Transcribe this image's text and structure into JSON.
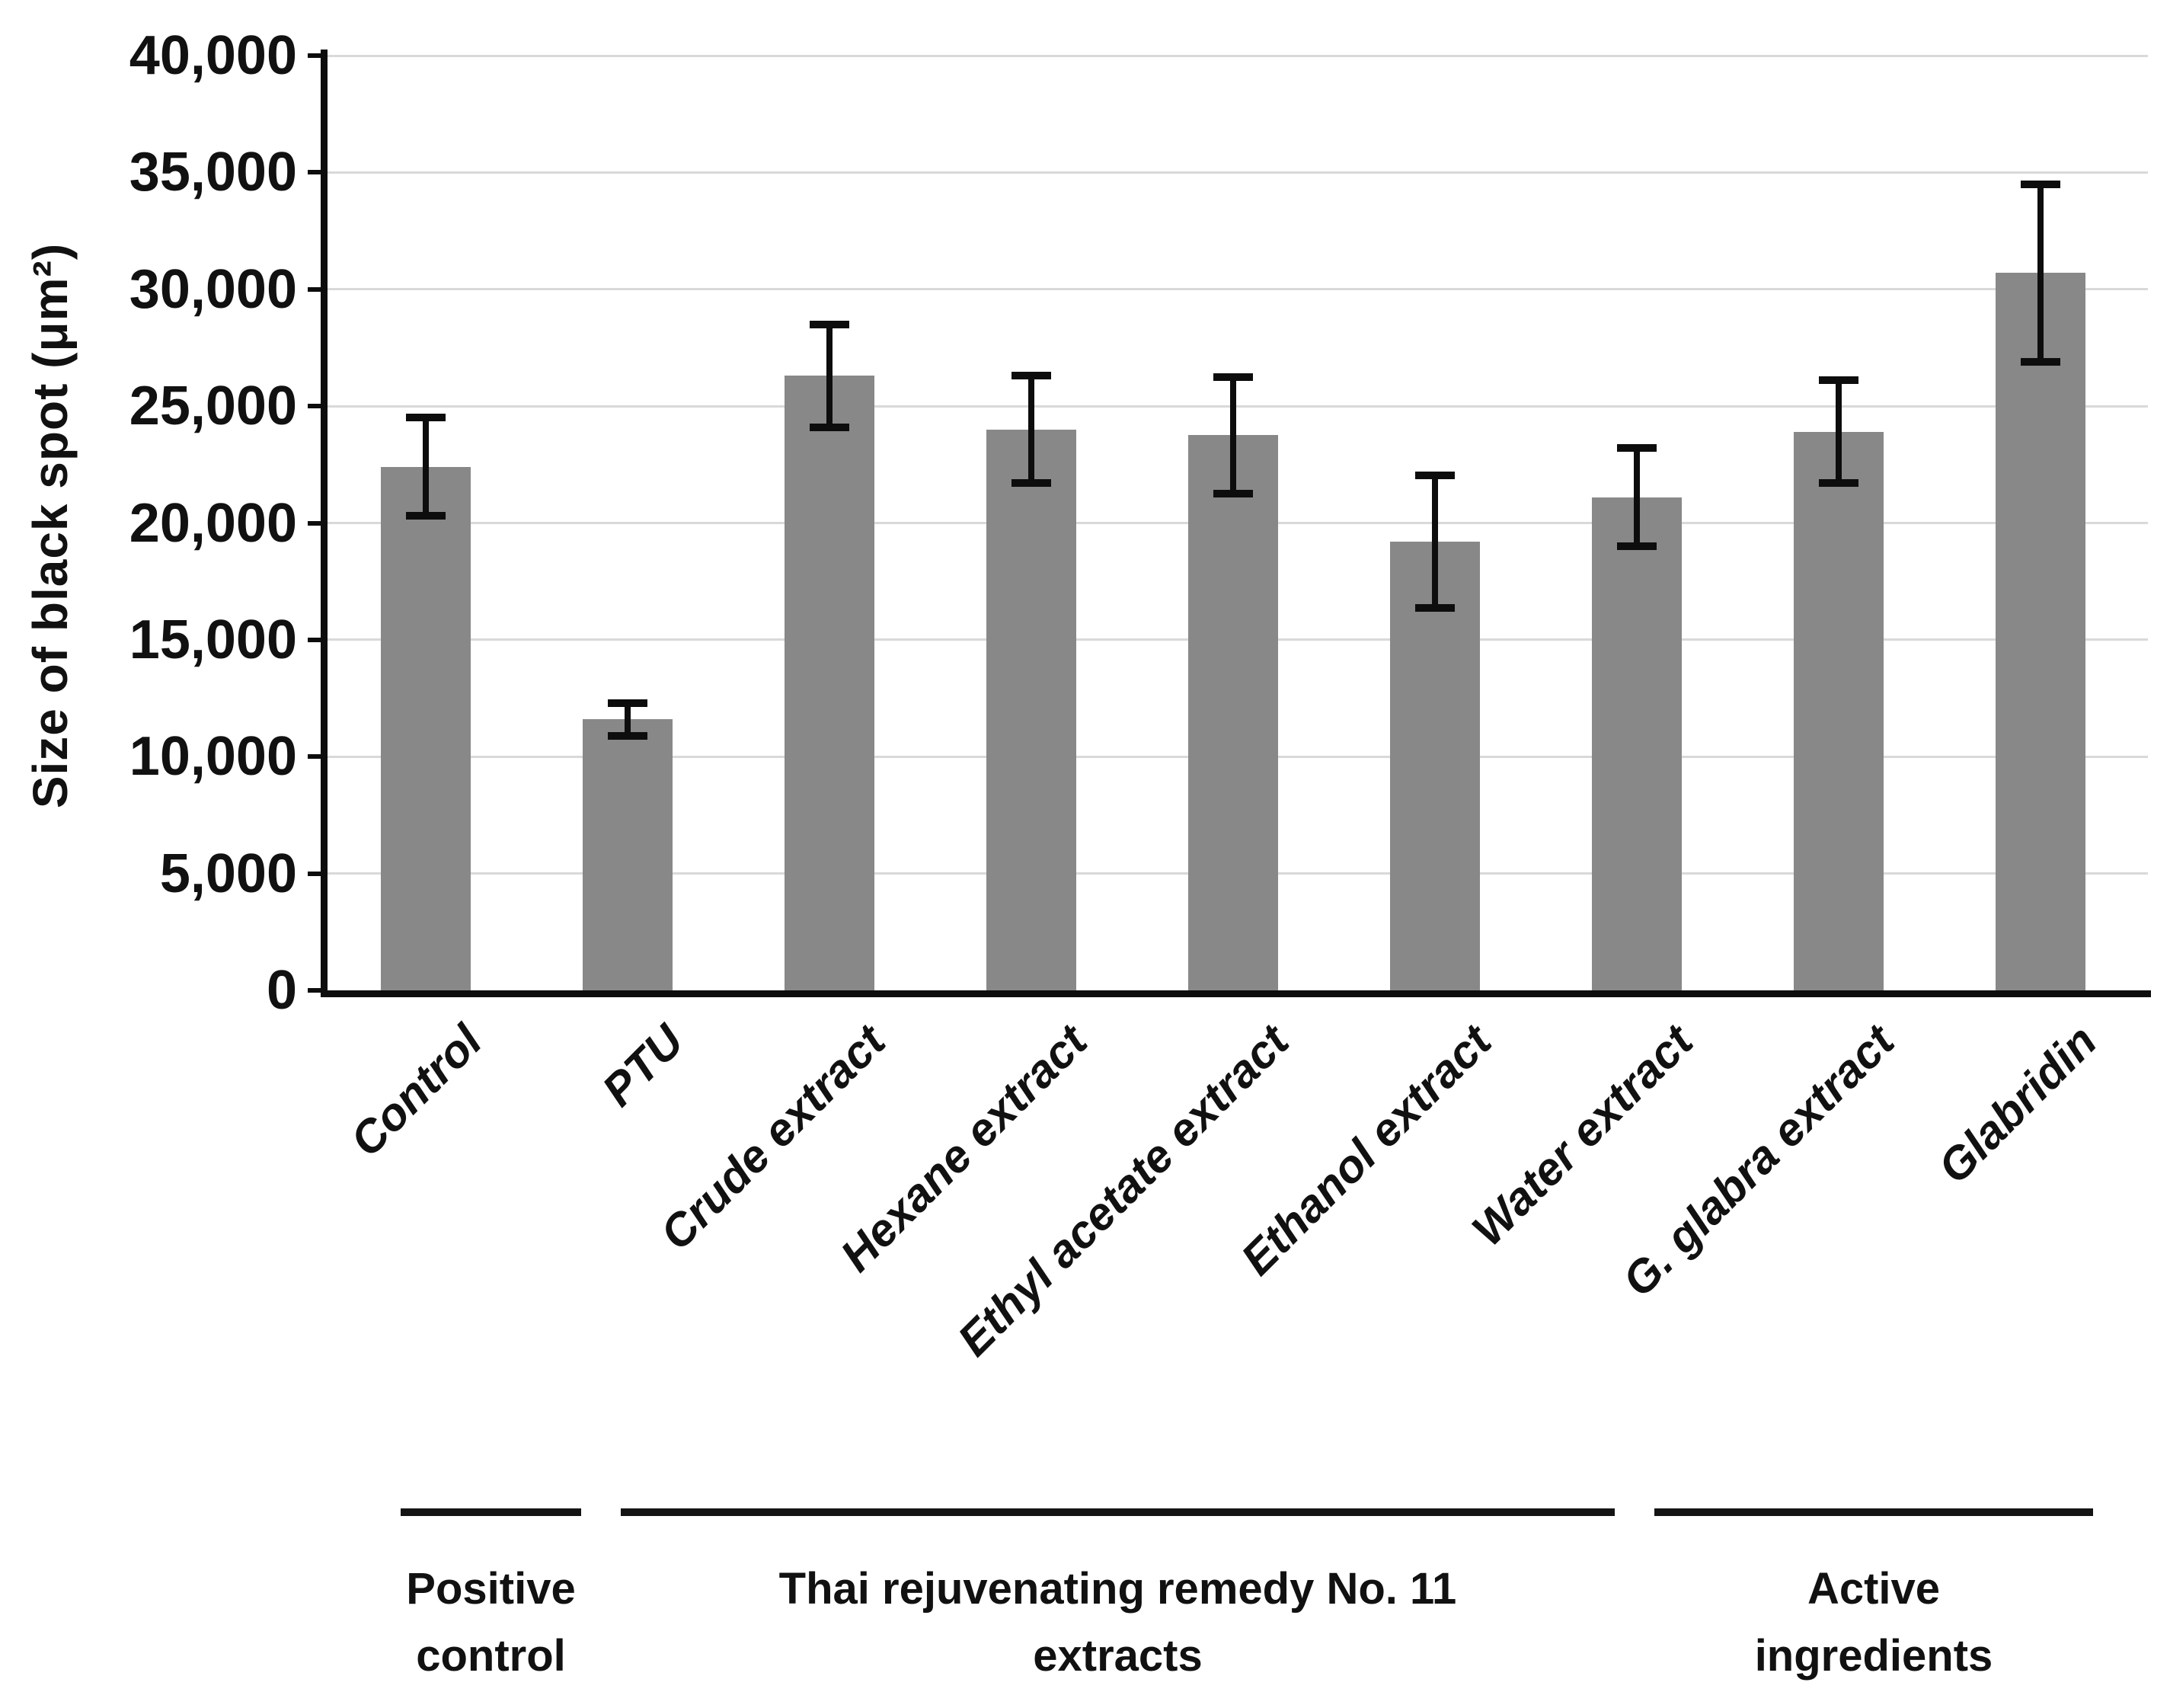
{
  "chart_data": {
    "type": "bar",
    "title": "",
    "xlabel": "",
    "ylabel": "Size of black spot (μm²)",
    "ylim": [
      0,
      40000
    ],
    "ytick_step": 5000,
    "ytick_labels": [
      "0",
      "5,000",
      "10,000",
      "15,000",
      "20,000",
      "25,000",
      "30,000",
      "35,000",
      "40,000"
    ],
    "grid": "horizontal-light-gray",
    "legend": "none",
    "bar_color": "#888888",
    "error_bar_color": "#0d0d0d",
    "categories": [
      "Control",
      "PTU",
      "Crude extract",
      "Hexane extract",
      "Ethyl acetate extract",
      "Ethanol extract",
      "Water extract",
      "G. glabra extract",
      "Glabridin"
    ],
    "values": [
      22400,
      11600,
      26300,
      24000,
      23750,
      19200,
      21100,
      23900,
      30700
    ],
    "errors": [
      2100,
      700,
      2200,
      2300,
      2500,
      2850,
      2100,
      2200,
      3800
    ],
    "groups": [
      {
        "label_lines": [
          "Positive",
          "control"
        ],
        "label": "Positive control",
        "categories": [
          "PTU"
        ],
        "rule_x_from": 526,
        "rule_x_to": 763
      },
      {
        "label_lines": [
          "Thai rejuvenating remedy No. 11",
          "extracts"
        ],
        "label": "Thai rejuvenating remedy No. 11 extracts",
        "categories": [
          "Crude extract",
          "Hexane extract",
          "Ethyl acetate extract",
          "Ethanol extract",
          "Water extract"
        ],
        "rule_x_from": 815,
        "rule_x_to": 2120
      },
      {
        "label_lines": [
          "Active",
          "ingredients"
        ],
        "label": "Active ingredients",
        "categories": [
          "G. glabra extract",
          "Glabridin"
        ],
        "rule_x_from": 2172,
        "rule_x_to": 2748
      }
    ]
  }
}
